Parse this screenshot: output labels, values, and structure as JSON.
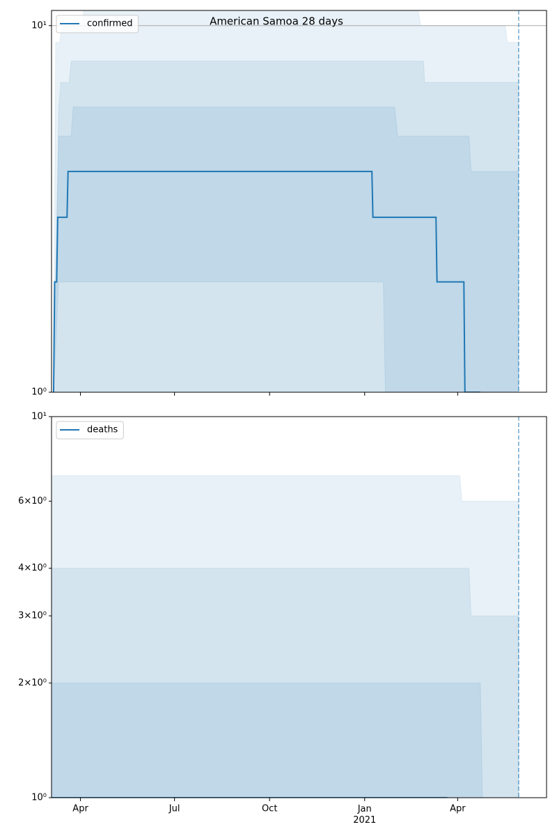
{
  "chart_data": [
    {
      "type": "line",
      "title": "American Samoa 28 days",
      "log_y": true,
      "legend": "upper left",
      "xlim": [
        -28,
        451
      ],
      "xticks": [
        0,
        91,
        183,
        275,
        365
      ],
      "xtick_labels": false,
      "ylim": [
        1,
        11
      ],
      "yticks": [
        {
          "value": 1,
          "label": "10⁰"
        },
        {
          "value": 10,
          "label": "10¹"
        }
      ],
      "hline": 10,
      "vline": 424,
      "band_color": "#1f77b4",
      "band_opacity": 0.1,
      "bands": [
        {
          "x": [
            -26,
            -24,
            -20,
            -18,
            2,
            3,
            327,
            329,
            411,
            413,
            424
          ],
          "upper": [
            1,
            9,
            9,
            10,
            10,
            11,
            11,
            10,
            10,
            9,
            9
          ],
          "lower": [
            1,
            1,
            1,
            1,
            1,
            1,
            1,
            1,
            1,
            1,
            1
          ]
        },
        {
          "x": [
            -26,
            -21,
            -19,
            -11,
            -9,
            332,
            333,
            424
          ],
          "upper": [
            1,
            6,
            7,
            7,
            8,
            8,
            7,
            7
          ],
          "lower": [
            1,
            1,
            1,
            1,
            1,
            1,
            1,
            1
          ]
        },
        {
          "x": [
            -26,
            -21,
            -18,
            -9,
            -7,
            293,
            295,
            304,
            307,
            376,
            378,
            424
          ],
          "upper": [
            1,
            5,
            5,
            5,
            6,
            6,
            6,
            6,
            5,
            5,
            4,
            4
          ],
          "lower": [
            1,
            2,
            2,
            2,
            2,
            2,
            1,
            1,
            1,
            1,
            1,
            1
          ]
        }
      ],
      "series": [
        {
          "name": "confirmed",
          "color": "#1f77b4",
          "x": [
            -26,
            -25,
            -23,
            -22,
            -13,
            -12,
            282,
            283,
            344,
            345,
            371,
            372,
            387
          ],
          "values": [
            1,
            2,
            2,
            3,
            3,
            4,
            4,
            3,
            3,
            2,
            2,
            1,
            1
          ]
        }
      ]
    },
    {
      "type": "line",
      "log_y": true,
      "legend": "upper left",
      "xlim": [
        -28,
        451
      ],
      "xticks": [
        {
          "value": 0,
          "label": "Apr"
        },
        {
          "value": 91,
          "label": "Jul"
        },
        {
          "value": 183,
          "label": "Oct"
        },
        {
          "value": 275,
          "label": "Jan\n2021"
        },
        {
          "value": 365,
          "label": "Apr"
        }
      ],
      "ylim": [
        1,
        10
      ],
      "yticks": [
        {
          "value": 1,
          "label": "10⁰"
        },
        {
          "value": 2,
          "label": "2×10⁰"
        },
        {
          "value": 3,
          "label": "3×10⁰"
        },
        {
          "value": 4,
          "label": "4×10⁰"
        },
        {
          "value": 6,
          "label": "6×10⁰"
        },
        {
          "value": 10,
          "label": "10¹"
        }
      ],
      "vline": 424,
      "band_color": "#1f77b4",
      "band_opacity": 0.1,
      "bands": [
        {
          "x": [
            -28,
            367,
            369,
            424
          ],
          "upper": [
            7,
            7,
            6,
            6
          ],
          "lower": [
            1,
            1,
            1,
            1
          ]
        },
        {
          "x": [
            -28,
            376,
            378,
            424
          ],
          "upper": [
            4,
            4,
            3,
            3
          ],
          "lower": [
            1,
            1,
            1,
            1
          ]
        },
        {
          "x": [
            -28,
            387,
            389
          ],
          "upper": [
            2,
            2,
            1
          ],
          "lower": [
            1,
            1,
            1
          ]
        }
      ],
      "series": [
        {
          "name": "deaths",
          "color": "#1f77b4",
          "x": [
            -28,
            355
          ],
          "values": [
            1,
            1
          ]
        }
      ]
    }
  ]
}
